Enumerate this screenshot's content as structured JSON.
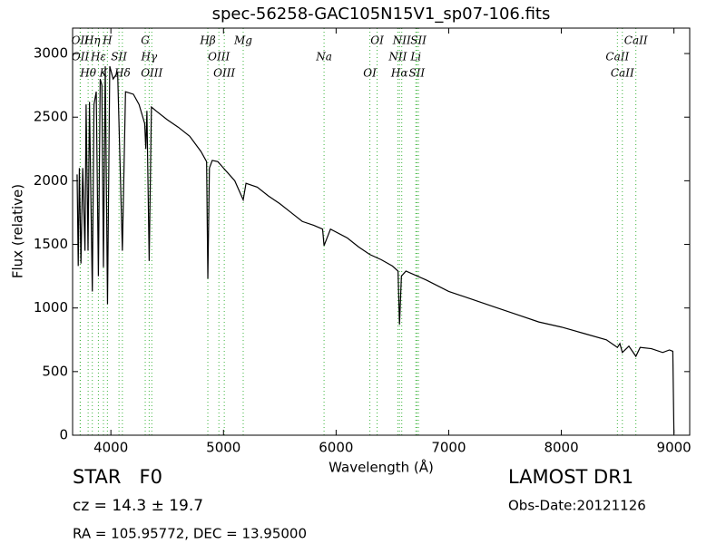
{
  "chart_data": {
    "type": "line",
    "title": "spec-56258-GAC105N15V1_sp07-106.fits",
    "xlabel": "Wavelength (Å)",
    "ylabel": "Flux (relative)",
    "xlim": [
      3660,
      9140
    ],
    "ylim": [
      0,
      3200
    ],
    "xticks": [
      4000,
      5000,
      6000,
      7000,
      8000,
      9000
    ],
    "yticks": [
      0,
      500,
      1000,
      1500,
      2000,
      2500,
      3000
    ],
    "color": "#000000",
    "line_color": "#3cb43c",
    "x": [
      3700,
      3710,
      3720,
      3734,
      3750,
      3770,
      3780,
      3797,
      3810,
      3835,
      3850,
      3870,
      3889,
      3905,
      3920,
      3934,
      3950,
      3970,
      3990,
      4020,
      4060,
      4102,
      4130,
      4200,
      4250,
      4300,
      4310,
      4320,
      4340,
      4360,
      4400,
      4500,
      4600,
      4700,
      4800,
      4850,
      4861,
      4875,
      4900,
      4950,
      5000,
      5100,
      5175,
      5200,
      5300,
      5400,
      5500,
      5600,
      5700,
      5800,
      5880,
      5893,
      5950,
      6100,
      6200,
      6300,
      6400,
      6500,
      6550,
      6563,
      6580,
      6620,
      6800,
      7000,
      7200,
      7400,
      7600,
      7800,
      8000,
      8200,
      8400,
      8498,
      8520,
      8542,
      8600,
      8662,
      8700,
      8800,
      8900,
      8960,
      8990,
      9000
    ],
    "values": [
      2050,
      1330,
      2100,
      1350,
      2100,
      1450,
      2600,
      1450,
      2620,
      1130,
      2600,
      2700,
      1250,
      2800,
      2750,
      1320,
      2900,
      1030,
      2900,
      2800,
      2850,
      1450,
      2700,
      2680,
      2600,
      2450,
      2250,
      2550,
      1370,
      2580,
      2550,
      2480,
      2420,
      2350,
      2230,
      2150,
      1230,
      2100,
      2160,
      2150,
      2100,
      2000,
      1850,
      1980,
      1950,
      1880,
      1820,
      1750,
      1680,
      1650,
      1620,
      1490,
      1620,
      1550,
      1480,
      1420,
      1380,
      1330,
      1290,
      870,
      1250,
      1290,
      1220,
      1130,
      1070,
      1010,
      950,
      890,
      850,
      800,
      750,
      690,
      720,
      650,
      700,
      620,
      690,
      680,
      650,
      670,
      660,
      10
    ],
    "lines": [
      {
        "label": "OII",
        "x": 3727
      },
      {
        "label": "OII",
        "x": 3729
      },
      {
        "label": "Hθ",
        "x": 3798
      },
      {
        "label": "Hη",
        "x": 3835
      },
      {
        "label": "Hε",
        "x": 3889
      },
      {
        "label": "K",
        "x": 3934
      },
      {
        "label": "H",
        "x": 3969
      },
      {
        "label": "SII",
        "x": 4072
      },
      {
        "label": "Hδ",
        "x": 4102
      },
      {
        "label": "G",
        "x": 4305
      },
      {
        "label": "Hγ",
        "x": 4340
      },
      {
        "label": "OIII",
        "x": 4363
      },
      {
        "label": "Hβ",
        "x": 4861
      },
      {
        "label": "OIII",
        "x": 4959
      },
      {
        "label": "OIII",
        "x": 5007
      },
      {
        "label": "Mg",
        "x": 5175
      },
      {
        "label": "Na",
        "x": 5893
      },
      {
        "label": "OI",
        "x": 6300
      },
      {
        "label": "OI",
        "x": 6364
      },
      {
        "label": "NII",
        "x": 6548
      },
      {
        "label": "Hα",
        "x": 6563
      },
      {
        "label": "NII",
        "x": 6583
      },
      {
        "label": "Li",
        "x": 6708
      },
      {
        "label": "SII",
        "x": 6717
      },
      {
        "label": "SII",
        "x": 6731
      },
      {
        "label": "CaII",
        "x": 8498
      },
      {
        "label": "CaII",
        "x": 8542
      },
      {
        "label": "CaII",
        "x": 8662
      }
    ],
    "object": "STAR   F0",
    "redshift": "cz = 14.3  ± 19.7",
    "coords": "RA = 105.95772, DEC = 13.95000",
    "release": "LAMOST DR1",
    "obs_date": "Obs-Date:20121126"
  }
}
